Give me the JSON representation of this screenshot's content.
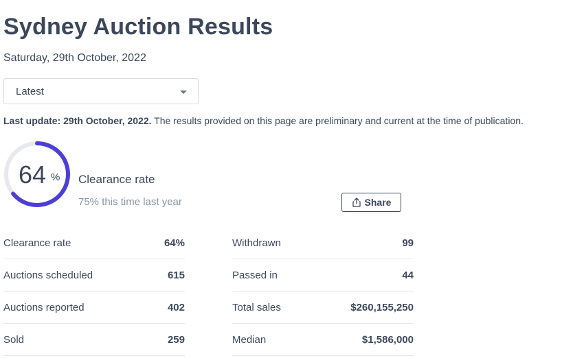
{
  "page": {
    "title": "Sydney Auction Results",
    "date": "Saturday, 29th October, 2022"
  },
  "select": {
    "value": "Latest"
  },
  "update": {
    "bold": "Last update: 29th October, 2022.",
    "text": " The results provided on this page are preliminary and current at the time of publication."
  },
  "gauge": {
    "value": "64",
    "unit": "%",
    "fraction": 0.64,
    "color": "#4b3fd6",
    "track_color": "#e8e9ee"
  },
  "clearance": {
    "label": "Clearance rate",
    "last_year": "75% this time last year"
  },
  "share": {
    "label": "Share",
    "icon": "share-icon"
  },
  "stats_left": [
    {
      "label": "Clearance rate",
      "value": "64%"
    },
    {
      "label": "Auctions scheduled",
      "value": "615"
    },
    {
      "label": "Auctions reported",
      "value": "402"
    },
    {
      "label": "Sold",
      "value": "259"
    }
  ],
  "stats_right": [
    {
      "label": "Withdrawn",
      "value": "99"
    },
    {
      "label": "Passed in",
      "value": "44"
    },
    {
      "label": "Total sales",
      "value": "$260,155,250"
    },
    {
      "label": "Median",
      "value": "$1,586,000"
    }
  ]
}
